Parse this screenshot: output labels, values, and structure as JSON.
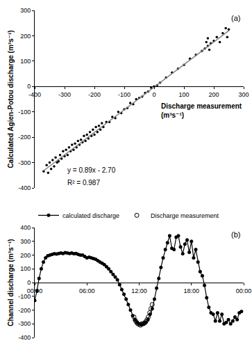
{
  "chart_data": [
    {
      "type": "scatter",
      "x_label": "Discharge measurement\n(m³s⁻¹)",
      "y_label": "Calculated Agien-Potou discharge (m³s⁻¹)",
      "annotations": [
        "y = 0.89x - 2.70",
        "R² = 0.987",
        "(a)"
      ],
      "xlim": [
        -400,
        300
      ],
      "ylim": [
        -400,
        300
      ],
      "xticks": [
        -400,
        -300,
        -200,
        -100,
        0,
        100,
        200,
        300
      ],
      "yticks": [
        -400,
        -300,
        -200,
        -100,
        0,
        100,
        200,
        300
      ],
      "grid": false,
      "legend": false,
      "series": [
        {
          "type": "scatter",
          "marker": "circle",
          "color": "#000000",
          "x": [
            -370,
            -360,
            -355,
            -350,
            -345,
            -340,
            -335,
            -330,
            -325,
            -320,
            -315,
            -310,
            -305,
            -300,
            -295,
            -290,
            -285,
            -280,
            -275,
            -270,
            -265,
            -260,
            -255,
            -250,
            -245,
            -240,
            -235,
            -230,
            -225,
            -220,
            -215,
            -210,
            -205,
            -200,
            -195,
            -190,
            -185,
            -180,
            -175,
            -170,
            -160,
            -150,
            -140,
            -130,
            -120,
            -110,
            -100,
            -90,
            -80,
            -70,
            -60,
            -50,
            -40,
            -30,
            -20,
            -10,
            0,
            10,
            20,
            40,
            60,
            80,
            100,
            120,
            140,
            160,
            170,
            175,
            180,
            180,
            185,
            190,
            200,
            210,
            220,
            230,
            240,
            245,
            250
          ],
          "values": [
            -335,
            -310,
            -340,
            -300,
            -325,
            -290,
            -315,
            -280,
            -300,
            -295,
            -270,
            -285,
            -255,
            -275,
            -250,
            -270,
            -240,
            -255,
            -230,
            -250,
            -225,
            -240,
            -215,
            -230,
            -210,
            -220,
            -195,
            -215,
            -190,
            -205,
            -180,
            -195,
            -170,
            -190,
            -160,
            -180,
            -155,
            -170,
            -145,
            -160,
            -140,
            -140,
            -120,
            -125,
            -100,
            -105,
            -90,
            -85,
            -65,
            -70,
            -50,
            -45,
            -40,
            -25,
            -20,
            -5,
            0,
            5,
            15,
            35,
            55,
            70,
            85,
            110,
            125,
            140,
            150,
            175,
            160,
            190,
            145,
            170,
            180,
            195,
            175,
            210,
            230,
            195,
            225
          ]
        },
        {
          "type": "line",
          "color": "#808080",
          "x": [
            -370,
            250
          ],
          "values": [
            -332,
            220
          ]
        }
      ]
    },
    {
      "type": "line",
      "y_label": "Channel discharge (m³s⁻¹)",
      "annotations": [
        "(b)"
      ],
      "xlim": [
        0,
        24
      ],
      "ylim": [
        -400,
        400
      ],
      "xticks": [
        {
          "value": 0,
          "label": "00:00"
        },
        {
          "value": 6,
          "label": "06:00"
        },
        {
          "value": 12,
          "label": "12:00"
        },
        {
          "value": 18,
          "label": "18:00"
        },
        {
          "value": 24,
          "label": "00:00"
        }
      ],
      "yticks": [
        -400,
        -300,
        -200,
        -100,
        0,
        100,
        200,
        300,
        400
      ],
      "grid": false,
      "legend": "top left",
      "series": [
        {
          "name": "calculated discharge",
          "type": "line",
          "marker": "circle",
          "color": "#000000",
          "x": [
            0,
            0.25,
            0.5,
            0.75,
            1,
            1.25,
            1.5,
            1.75,
            2,
            2.25,
            2.5,
            2.75,
            3,
            3.25,
            3.5,
            3.75,
            4,
            4.25,
            4.5,
            4.75,
            5,
            5.25,
            5.5,
            5.75,
            6,
            6.25,
            6.5,
            6.75,
            7,
            7.25,
            7.5,
            7.75,
            8,
            8.25,
            8.5,
            8.75,
            9,
            9.25,
            9.5,
            9.75,
            10,
            10.25,
            10.5,
            10.75,
            11,
            11.25,
            11.5,
            11.75,
            12,
            12.25,
            12.5,
            12.75,
            13,
            13.25,
            13.5,
            13.75,
            14,
            14.25,
            14.5,
            14.75,
            15,
            15.25,
            15.5,
            15.75,
            16,
            16.25,
            16.5,
            16.75,
            17,
            17.25,
            17.5,
            17.75,
            18,
            18.25,
            18.5,
            18.75,
            19,
            19.25,
            19.5,
            19.75,
            20,
            20.25,
            20.5,
            20.75,
            21,
            21.25,
            21.5,
            21.75,
            22,
            22.25,
            22.5,
            22.75,
            23,
            23.25,
            23.5,
            23.75
          ],
          "values": [
            -130,
            -60,
            30,
            100,
            150,
            180,
            195,
            200,
            205,
            210,
            208,
            212,
            215,
            212,
            218,
            215,
            212,
            215,
            210,
            212,
            205,
            200,
            200,
            190,
            180,
            185,
            180,
            175,
            170,
            160,
            150,
            140,
            130,
            115,
            100,
            80,
            60,
            40,
            20,
            -15,
            -50,
            -85,
            -120,
            -160,
            -200,
            -240,
            -270,
            -290,
            -300,
            -305,
            -300,
            -290,
            -270,
            -230,
            -190,
            -120,
            -40,
            30,
            110,
            180,
            240,
            290,
            340,
            250,
            240,
            330,
            340,
            260,
            210,
            280,
            310,
            220,
            300,
            180,
            240,
            150,
            80,
            50,
            -20,
            -110,
            -180,
            -220,
            -230,
            -280,
            -220,
            -280,
            -230,
            -300,
            -290,
            -270,
            -300,
            -280,
            -250,
            -270,
            -220,
            -210
          ]
        },
        {
          "name": "Discharge measurement",
          "type": "scatter",
          "marker": "circle-open",
          "color": "#000000",
          "x": [
            11.4,
            11.55,
            11.7,
            11.85,
            12,
            12.15,
            12.3,
            12.45,
            12.6,
            12.75,
            12.9,
            13.05,
            13.2,
            13.35,
            13.5
          ],
          "values": [
            -250,
            -275,
            -290,
            -300,
            -305,
            -310,
            -300,
            -300,
            -295,
            -285,
            -270,
            -250,
            -220,
            -190,
            -160
          ]
        }
      ]
    }
  ]
}
